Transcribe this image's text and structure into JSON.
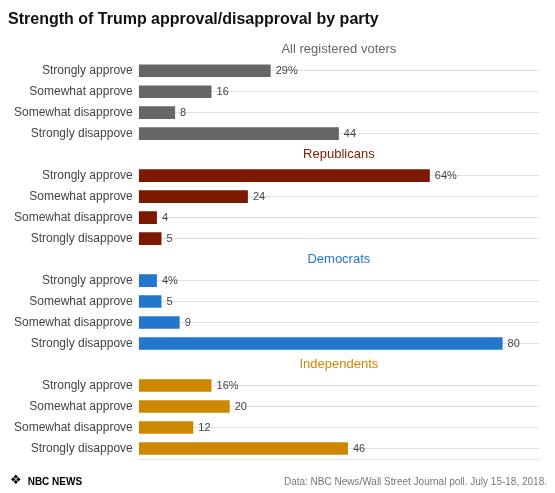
{
  "chart_data": {
    "type": "bar",
    "orientation": "horizontal",
    "title": "Strength of Trump approval/disapproval by party",
    "categories": [
      null,
      "Strongly approve",
      "Somewhat approve",
      "Somewhat disapprove",
      "Strongly disappove",
      null,
      "Strongly approve",
      "Somewhat approve",
      "Somewhat disapprove",
      "Strongly disappove",
      null,
      "Strongly approve",
      "Somewhat approve",
      "Somewhat disapprove",
      "Strongly disappove",
      null,
      "Strongly approve",
      "Somewhat approve",
      "Somewhat disapprove",
      "Strongly disappove"
    ],
    "series": [
      {
        "name": "All registered voters",
        "color": "#666666",
        "values": [
          null,
          29,
          16,
          8,
          44,
          null,
          null,
          null,
          null,
          null,
          null,
          null,
          null,
          null,
          null,
          null,
          null,
          null,
          null,
          null
        ],
        "value_labels": [
          null,
          "29%",
          "16",
          "8",
          "44",
          null,
          null,
          null,
          null,
          null,
          null,
          null,
          null,
          null,
          null,
          null,
          null,
          null,
          null,
          null
        ]
      },
      {
        "name": "Republicans",
        "color": "#7B1A00",
        "values": [
          null,
          null,
          null,
          null,
          null,
          null,
          64,
          24,
          4,
          5,
          null,
          null,
          null,
          null,
          null,
          null,
          null,
          null,
          null,
          null
        ],
        "value_labels": [
          null,
          null,
          null,
          null,
          null,
          null,
          "64%",
          "24",
          "4",
          "5",
          null,
          null,
          null,
          null,
          null,
          null,
          null,
          null,
          null,
          null
        ]
      },
      {
        "name": "Democrats",
        "color": "#2277CC",
        "values": [
          null,
          null,
          null,
          null,
          null,
          null,
          null,
          null,
          null,
          null,
          null,
          4,
          5,
          9,
          80,
          null,
          null,
          null,
          null,
          null
        ],
        "value_labels": [
          null,
          null,
          null,
          null,
          null,
          null,
          null,
          null,
          null,
          null,
          null,
          "4%",
          "5",
          "9",
          "80",
          null,
          null,
          null,
          null,
          null
        ]
      },
      {
        "name": "Independents",
        "color": "#CC8800",
        "values": [
          null,
          null,
          null,
          null,
          null,
          null,
          null,
          null,
          null,
          null,
          null,
          null,
          null,
          null,
          null,
          null,
          16,
          20,
          12,
          46
        ],
        "value_labels": [
          null,
          null,
          null,
          null,
          null,
          null,
          null,
          null,
          null,
          null,
          null,
          null,
          null,
          null,
          null,
          null,
          "16%",
          "20",
          "12",
          "46"
        ]
      }
    ],
    "xlim": [
      0,
      88
    ],
    "data_labels": true,
    "tick_labels": "y",
    "grid": true,
    "annotations": [
      "❖",
      "NBC NEWS",
      "Data: NBC News/Wall Street Journal poll. July 15-18, 2018."
    ]
  }
}
